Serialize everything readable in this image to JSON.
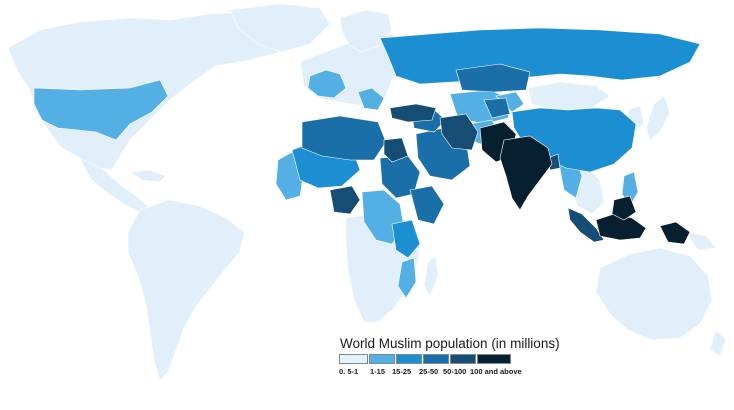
{
  "map": {
    "title": "World Muslim population (in millions)",
    "legend": [
      {
        "label": "0. 5-1",
        "color": "#e6f2fb"
      },
      {
        "label": "1-15",
        "color": "#54b0e4"
      },
      {
        "label": "15-25",
        "color": "#1b8fd2"
      },
      {
        "label": "25-50",
        "color": "#1a6fa8"
      },
      {
        "label": "50-100",
        "color": "#154d74"
      },
      {
        "label": "100 and above",
        "color": "#07202f"
      }
    ],
    "colors": {
      "ocean": "#ffffff",
      "land": "#e1effa",
      "border": "#ffffff"
    }
  }
}
